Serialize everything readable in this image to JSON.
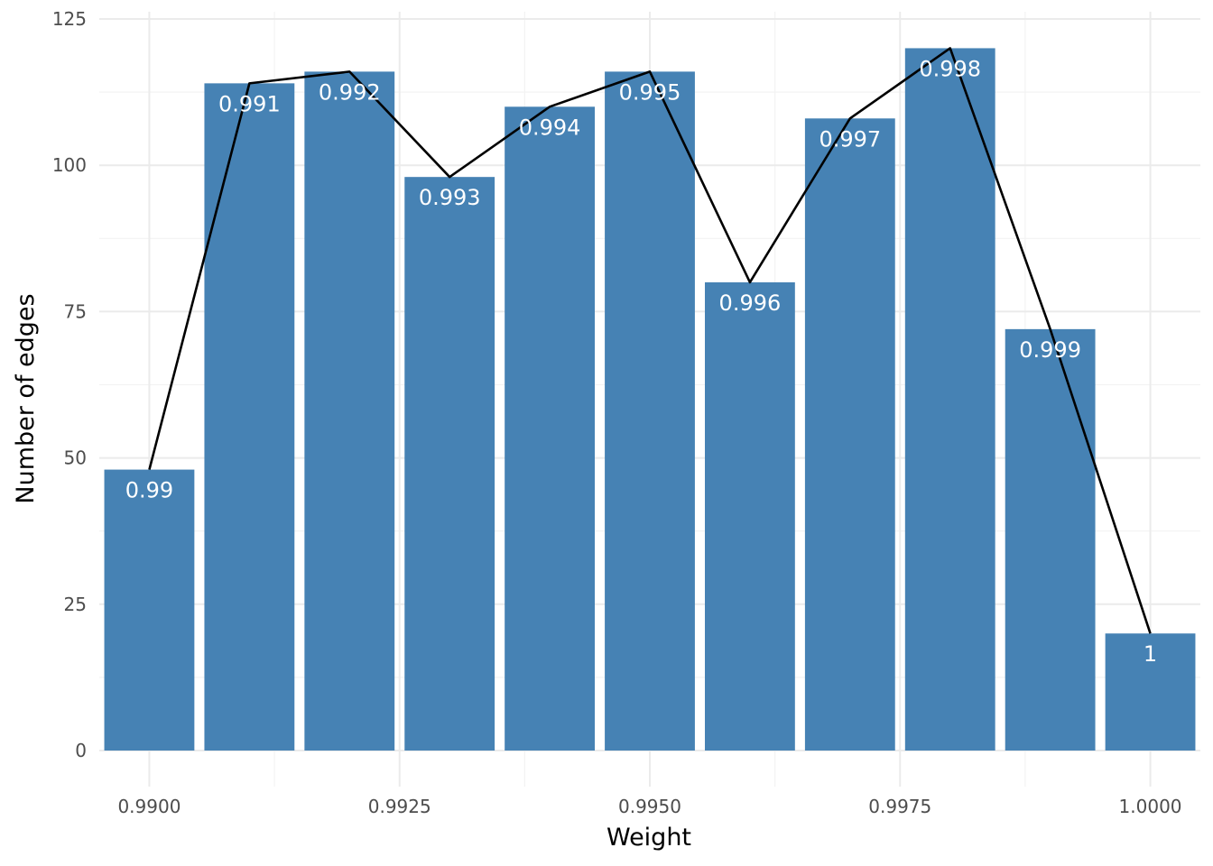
{
  "chart_data": {
    "type": "bar",
    "title": "",
    "xlabel": "Weight",
    "ylabel": "Number of edges",
    "x": [
      0.99,
      0.991,
      0.992,
      0.993,
      0.994,
      0.995,
      0.996,
      0.997,
      0.998,
      0.999,
      1.0
    ],
    "values": [
      48,
      114,
      116,
      98,
      110,
      116,
      80,
      108,
      120,
      72,
      20
    ],
    "bar_labels": [
      "0.99",
      "0.991",
      "0.992",
      "0.993",
      "0.994",
      "0.995",
      "0.996",
      "0.997",
      "0.998",
      "0.999",
      "1"
    ],
    "line_overlay": true,
    "xlim": [
      0.9895,
      1.0005
    ],
    "ylim": [
      0,
      125
    ],
    "x_ticks": [
      0.99,
      0.9925,
      0.995,
      0.9975,
      1.0
    ],
    "x_tick_labels": [
      "0.9900",
      "0.9925",
      "0.9950",
      "0.9975",
      "1.0000"
    ],
    "y_ticks": [
      0,
      25,
      50,
      75,
      100,
      125
    ],
    "y_tick_labels": [
      "0",
      "25",
      "50",
      "75",
      "100",
      "125"
    ],
    "grid": true,
    "colors": {
      "bar": "#4682B4",
      "line": "#000000",
      "bar_label": "#FFFFFF",
      "grid": "#EBEBEB"
    }
  }
}
